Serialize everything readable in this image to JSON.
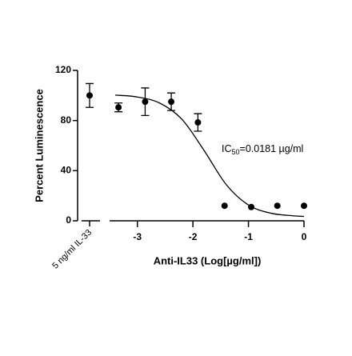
{
  "chart_data": {
    "type": "scatter",
    "x_label": "Anti-IL33 (Log[µg/ml])",
    "y_label": "Percent Luminescence",
    "x": [
      -3.34,
      -2.86,
      -2.39,
      -1.91,
      -1.43,
      -0.95,
      -0.48,
      0
    ],
    "values": [
      90.5,
      95,
      95,
      78.5,
      12,
      11,
      12,
      12
    ],
    "errors": [
      3.5,
      11,
      7,
      7,
      null,
      null,
      null,
      null
    ],
    "color": "#000000",
    "control": {
      "label": "5 ng/ml IL-33",
      "value": 100,
      "error": 9.5
    },
    "fit": {
      "x": [
        -3.4,
        -3.0,
        -2.6,
        -2.2,
        -1.8,
        -1.4,
        -1.0,
        -0.6,
        -0.2,
        0
      ],
      "values": [
        100.3,
        98.8,
        94,
        81.1,
        56.2,
        28.9,
        12.6,
        6.1,
        4,
        3.5
      ]
    },
    "annotation": {
      "prefix": "IC",
      "subscript": "50",
      "suffix": "=0.0181 µg/ml"
    },
    "xlim": [
      -3.5,
      0
    ],
    "xticks": [
      -3,
      -2,
      -1,
      0
    ],
    "ylim": [
      0,
      120
    ],
    "yticks": [
      0,
      40,
      80,
      120
    ]
  }
}
